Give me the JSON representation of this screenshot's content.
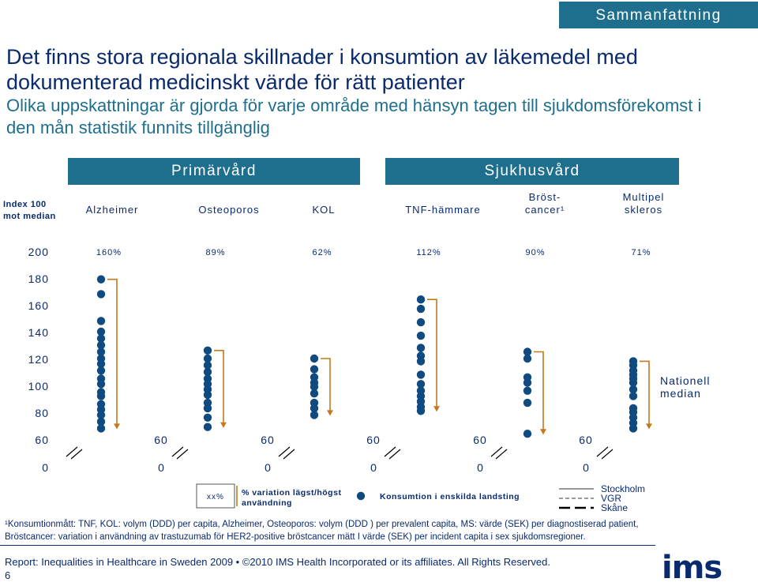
{
  "tag": "Sammanfattning",
  "title": "Det finns stora regionala skillnader i konsumtion av läkemedel med dokumenterad medicinskt värde för rätt patienter",
  "subtitle": "Olika uppskattningar är gjorda för varje område med hänsyn tagen till sjukdomsförekomst i den mån statistik funnits tillgänglig",
  "groups": [
    "Primärvård",
    "Sjukhusvård"
  ],
  "index_label": [
    "Index 100",
    "mot median"
  ],
  "diseases": [
    [
      "Alzheimer"
    ],
    [
      "Osteoporos"
    ],
    [
      "KOL"
    ],
    [
      "TNF-hämmare"
    ],
    [
      "Bröst-",
      "cancer¹"
    ],
    [
      "Multipel",
      "skleros"
    ]
  ],
  "colors": {
    "accent": "#1e6f8e",
    "dot": "#0f4a80",
    "bracket": "#c47a1c",
    "text": "#0a2a6e"
  },
  "chart_data": {
    "type": "scatter",
    "y_ticks": [
      "200",
      "180",
      "160",
      "140",
      "120",
      "100",
      "80",
      "60",
      "0"
    ],
    "y_tick_values": [
      200,
      180,
      160,
      140,
      120,
      100,
      80,
      60,
      0
    ],
    "col_tick_labels": [
      "60",
      "0"
    ],
    "median_label": [
      "Nationell",
      "median"
    ],
    "series": [
      {
        "variation": "160%",
        "values": [
          179,
          168,
          148,
          140,
          135,
          130,
          125,
          120,
          116,
          111,
          105,
          101,
          95,
          92,
          86,
          82,
          78,
          73,
          68
        ]
      },
      {
        "variation": "89%",
        "values": [
          126,
          120,
          115,
          110,
          105,
          101,
          97,
          93,
          87,
          83,
          76,
          69
        ]
      },
      {
        "variation": "62%",
        "values": [
          120,
          112,
          106,
          102,
          99,
          94,
          87,
          83,
          78
        ]
      },
      {
        "variation": "112%",
        "values": [
          164,
          157,
          147,
          137,
          128,
          122,
          118,
          108,
          101,
          96,
          92,
          88,
          84,
          81
        ]
      },
      {
        "variation": "90%",
        "values": [
          125,
          120,
          106,
          102,
          96,
          87,
          64
        ]
      },
      {
        "variation": "71%",
        "values": [
          118,
          115,
          111,
          108,
          105,
          102,
          97,
          92,
          83,
          80,
          76,
          72,
          68
        ]
      }
    ]
  },
  "legend": {
    "sample": "xx%",
    "variation_label": [
      "% variation lägst/högst",
      "användning"
    ],
    "dot_label": "Konsumtion i enskilda landsting",
    "regions": [
      "Stockholm",
      "VGR",
      "Skåne"
    ]
  },
  "footnotes": [
    "¹Konsumtionmått: TNF, KOL: volym (DDD) per capita, Alzheimer, Osteoporos: volym (DDD ) per prevalent capita, MS: värde (SEK) per diagnostiserad patient,",
    "Bröstcancer: variation i användning av trastuzumab för HER2-positive bröstcancer mätt I värde (SEK) per incident capita i sex sjukdomsregioner."
  ],
  "report": "Report: Inequalities in Healthcare in Sweden 2009 • ©2010 IMS Health Incorporated or its affiliates. All Rights Reserved.",
  "page_number": "6",
  "logo": "ims"
}
